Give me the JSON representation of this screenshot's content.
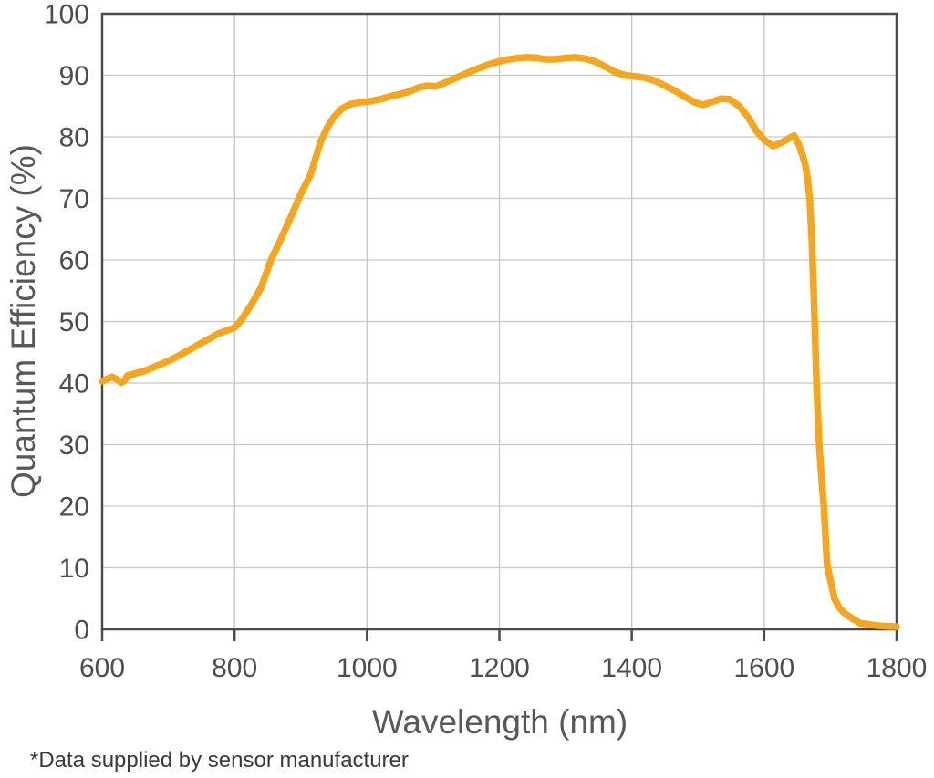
{
  "chart_data": {
    "type": "line",
    "title": "",
    "xlabel": "Wavelength (nm)",
    "ylabel": "Quantum Efficiency (%)",
    "xlim": [
      600,
      1800
    ],
    "ylim": [
      0,
      100
    ],
    "x_ticks": [
      600,
      800,
      1000,
      1200,
      1400,
      1600,
      1800
    ],
    "y_ticks": [
      0,
      10,
      20,
      30,
      40,
      50,
      60,
      70,
      80,
      90,
      100
    ],
    "grid": true,
    "legend": "none",
    "series": [
      {
        "name": "Quantum Efficiency",
        "color": "#F7A61C",
        "x": [
          600,
          608,
          615,
          622,
          629,
          634,
          638,
          648,
          665,
          685,
          700,
          715,
          730,
          745,
          760,
          775,
          790,
          800,
          810,
          825,
          840,
          855,
          870,
          885,
          900,
          915,
          930,
          940,
          950,
          962,
          975,
          990,
          1005,
          1020,
          1040,
          1060,
          1078,
          1090,
          1105,
          1120,
          1135,
          1150,
          1165,
          1180,
          1195,
          1210,
          1225,
          1240,
          1255,
          1270,
          1285,
          1300,
          1315,
          1330,
          1345,
          1360,
          1375,
          1390,
          1405,
          1420,
          1435,
          1450,
          1465,
          1480,
          1495,
          1508,
          1522,
          1535,
          1548,
          1562,
          1575,
          1588,
          1600,
          1613,
          1625,
          1638,
          1645,
          1652,
          1658,
          1662,
          1666,
          1669,
          1672,
          1675,
          1679,
          1683,
          1687,
          1690,
          1695,
          1700,
          1706,
          1714,
          1723,
          1734,
          1745,
          1758,
          1772,
          1786,
          1800
        ],
        "y": [
          40.3,
          40.7,
          41.0,
          40.6,
          40.1,
          40.4,
          41.2,
          41.5,
          42.0,
          42.9,
          43.6,
          44.4,
          45.3,
          46.2,
          47.1,
          48.0,
          48.6,
          49.0,
          50.2,
          52.7,
          55.5,
          60.0,
          63.4,
          67.0,
          70.7,
          73.9,
          79.2,
          81.5,
          83.2,
          84.6,
          85.3,
          85.6,
          85.8,
          86.1,
          86.7,
          87.2,
          88.0,
          88.3,
          88.2,
          88.9,
          89.6,
          90.3,
          91.0,
          91.6,
          92.1,
          92.5,
          92.75,
          92.9,
          92.85,
          92.6,
          92.6,
          92.8,
          92.9,
          92.7,
          92.2,
          91.4,
          90.5,
          90.0,
          89.8,
          89.6,
          89.1,
          88.3,
          87.5,
          86.5,
          85.6,
          85.2,
          85.7,
          86.2,
          86.1,
          85.0,
          83.3,
          81.0,
          79.5,
          78.5,
          79.0,
          79.8,
          80.2,
          78.8,
          77.0,
          75.5,
          73.0,
          69.5,
          63.0,
          54.0,
          40.0,
          30.0,
          24.0,
          20.0,
          10.5,
          8.0,
          5.0,
          3.4,
          2.5,
          1.7,
          1.0,
          0.8,
          0.6,
          0.5,
          0.45
        ]
      }
    ]
  },
  "footnote": {
    "text": "*Data supplied by sensor manufacturer"
  },
  "colors": {
    "curve": "#F7A61C",
    "grid": "#C6C6C6",
    "frame": "#4B4B4D",
    "tick_label": "#4D4D4F",
    "axis_title": "#58585A",
    "footnote_text": "#3A3A3A",
    "background": "#FFFFFF"
  }
}
